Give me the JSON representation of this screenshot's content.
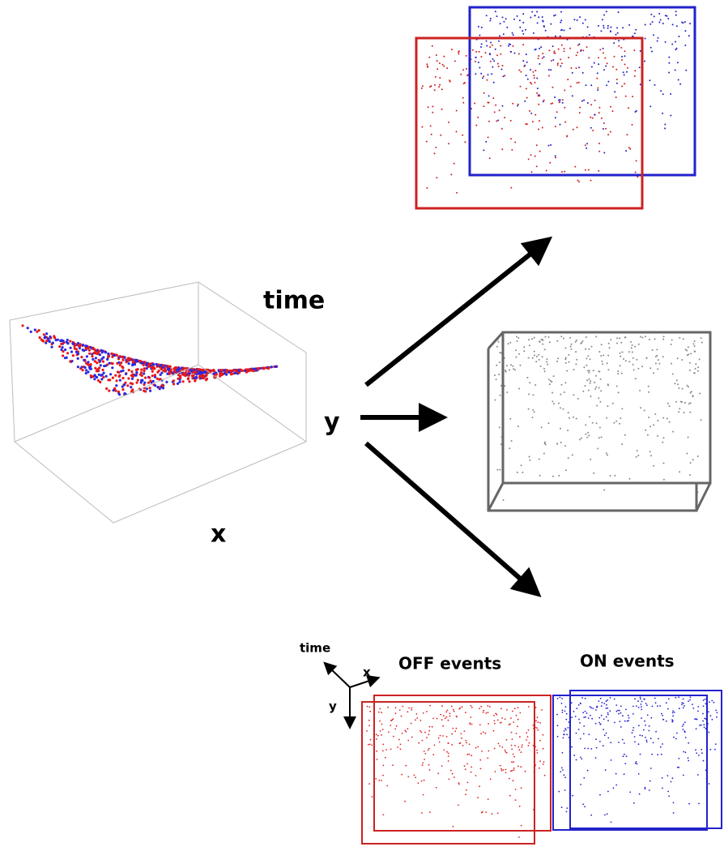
{
  "cube": {
    "time": "time",
    "y": "y",
    "x": "x"
  },
  "axes_key": {
    "time": "time",
    "x": "x",
    "y": "y"
  },
  "panels": {
    "off": "OFF events",
    "on": "ON events"
  }
}
